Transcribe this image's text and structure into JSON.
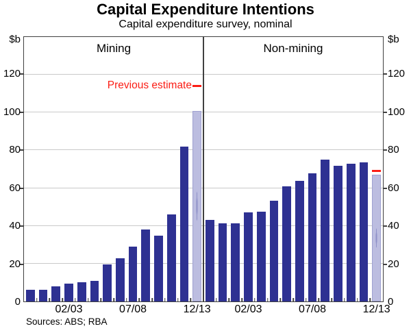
{
  "title": "Capital Expenditure Intentions",
  "subtitle": "Capital expenditure survey, nominal",
  "source": "Sources: ABS; RBA",
  "chart_data": {
    "type": "bar",
    "title": "Capital Expenditure Intentions",
    "subtitle": "Capital expenditure survey, nominal",
    "unit": "$b",
    "ylim": [
      0,
      140
    ],
    "yticks": [
      0,
      20,
      40,
      60,
      80,
      100,
      120
    ],
    "grid": "horizontal",
    "slots_per_panel": 14,
    "panels": [
      {
        "label": "Mining",
        "values": [
          6,
          6,
          8,
          9.5,
          10,
          11,
          19.5,
          23,
          29,
          38,
          35,
          46,
          82
        ],
        "estimate_value": 101,
        "previous_estimate": 114,
        "xticks": [
          {
            "label": "02/03",
            "slot": 4
          },
          {
            "label": "07/08",
            "slot": 9
          },
          {
            "label": "12/13",
            "slot": 14
          }
        ]
      },
      {
        "label": "Non-mining",
        "values": [
          43,
          41.5,
          41.5,
          47,
          47.5,
          53.5,
          61,
          64,
          68,
          75,
          72,
          73,
          73.5
        ],
        "estimate_value": 67,
        "previous_estimate": 69,
        "xticks": [
          {
            "label": "02/03",
            "slot": 4
          },
          {
            "label": "07/08",
            "slot": 9
          },
          {
            "label": "12/13",
            "slot": 14
          }
        ]
      }
    ],
    "legend": {
      "previous_estimate_label": "Previous estimate"
    },
    "colors": {
      "bar": "#2e3192",
      "estimate_bar": "#bcbde0",
      "estimate_bar_dot": "#8f91c8",
      "estimate_border": "#9fa1d0",
      "previous_estimate": "#fb1d15",
      "gridline": "#c9c9c9",
      "axis": "#3f3f3f"
    }
  }
}
